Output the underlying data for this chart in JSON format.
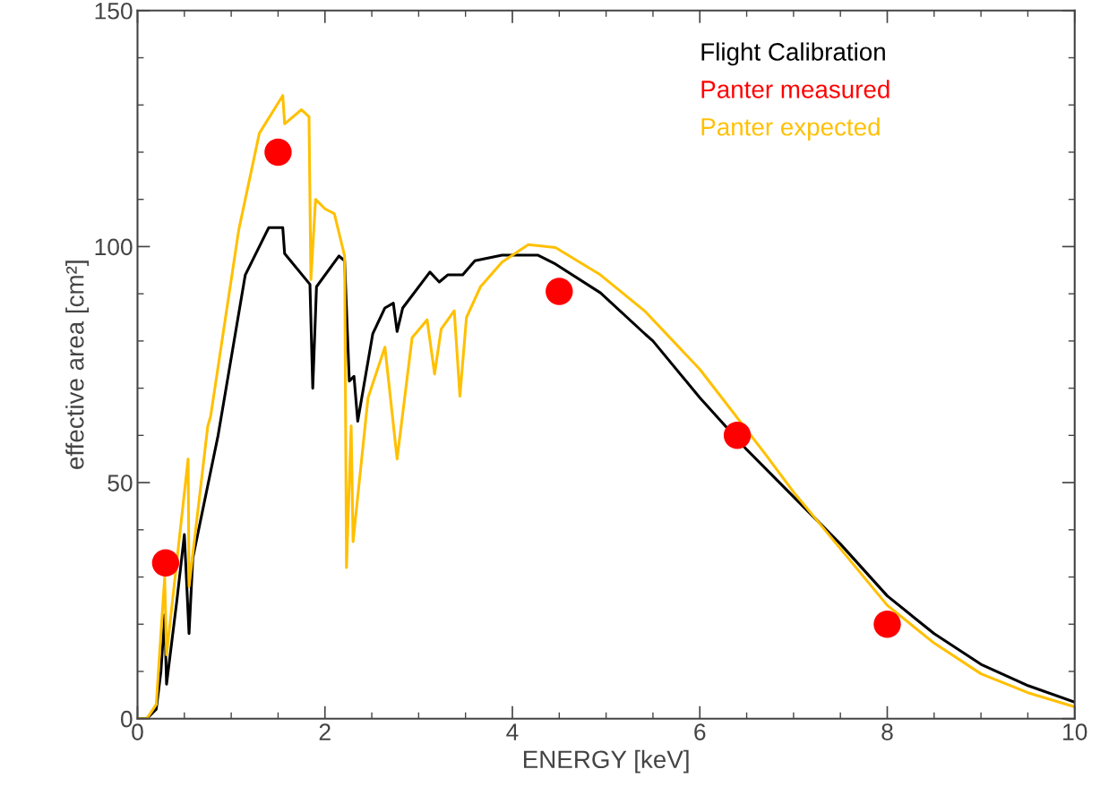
{
  "chart_data": {
    "type": "line",
    "xlabel": "ENERGY [keV]",
    "ylabel": "effective area [cm²]",
    "xlim": [
      0,
      10
    ],
    "ylim": [
      0,
      150
    ],
    "xticks": [
      0,
      2,
      4,
      6,
      8,
      10
    ],
    "yticks": [
      0,
      50,
      100,
      150
    ],
    "grid": false,
    "legend": "top right",
    "series": [
      {
        "name": "Flight Calibration",
        "color": "#000000",
        "marker": "none",
        "x": [
          0,
          0.1,
          0.2,
          0.25,
          0.29,
          0.31,
          0.42,
          0.5,
          0.55,
          0.59,
          0.86,
          1.15,
          1.4,
          1.55,
          1.57,
          1.84,
          1.87,
          1.91,
          2.15,
          2.21,
          2.26,
          2.31,
          2.35,
          2.51,
          2.64,
          2.73,
          2.77,
          2.83,
          3.12,
          3.22,
          3.31,
          3.47,
          3.6,
          3.89,
          4.27,
          4.46,
          4.94,
          5.42,
          5.5,
          6.0,
          6.5,
          7.0,
          7.5,
          8.0,
          8.5,
          9.0,
          9.5,
          10.0
        ],
        "values": [
          0,
          0,
          2,
          10,
          22,
          7.3,
          25,
          39,
          18,
          34,
          60,
          94,
          104,
          104,
          98.5,
          92,
          70,
          91.5,
          98,
          97,
          71.5,
          72.5,
          63,
          81.5,
          87,
          88,
          82,
          87,
          94.6,
          92.5,
          94,
          94,
          97,
          98.2,
          98.2,
          96.3,
          90.2,
          81.4,
          80,
          68,
          57,
          47,
          37,
          26,
          18,
          11.5,
          7,
          3.5
        ]
      },
      {
        "name": "Panter expected",
        "color": "#ffc000",
        "marker": "none",
        "x": [
          0,
          0.1,
          0.2,
          0.29,
          0.31,
          0.44,
          0.54,
          0.55,
          0.75,
          0.78,
          1.08,
          1.3,
          1.55,
          1.57,
          1.75,
          1.83,
          1.85,
          1.9,
          2.0,
          2.1,
          2.21,
          2.23,
          2.28,
          2.3,
          2.46,
          2.64,
          2.77,
          2.93,
          3.09,
          3.17,
          3.24,
          3.38,
          3.44,
          3.51,
          3.66,
          3.89,
          4.17,
          4.46,
          4.94,
          5.42,
          6.0,
          6.7,
          7.0,
          7.5,
          8.0,
          8.5,
          9.0,
          9.5,
          10.0
        ],
        "values": [
          0,
          0,
          3,
          30,
          13.5,
          37,
          55,
          28,
          62,
          64,
          103.5,
          124,
          132,
          126,
          129,
          127.5,
          93,
          110,
          108,
          107,
          98,
          32,
          62,
          37.5,
          68,
          78.7,
          55,
          80.7,
          84.5,
          73,
          82.5,
          86.4,
          68.3,
          85,
          91.5,
          96.7,
          100.4,
          99.8,
          94,
          86.2,
          74,
          56,
          48,
          36,
          24,
          16,
          9.5,
          5.5,
          2.5
        ]
      },
      {
        "name": "Panter measured",
        "color": "#ff0000",
        "type": "scatter",
        "marker": "circle",
        "x": [
          0.3,
          1.5,
          4.5,
          6.4,
          8.0
        ],
        "values": [
          33,
          120,
          90.5,
          60,
          20
        ]
      }
    ]
  }
}
